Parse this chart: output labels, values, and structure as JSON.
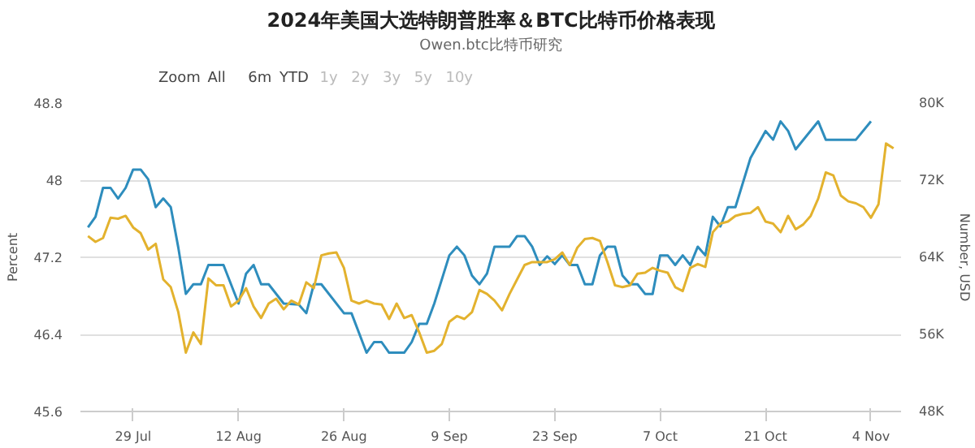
{
  "chart_data": {
    "type": "line",
    "title": "2024年美国大选特朗普胜率＆BTC比特币价格表现",
    "subtitle": "Owen.btc比特币研究",
    "annotations": [
      "Zoom",
      "All",
      "6m",
      "YTD",
      "1y",
      "2y",
      "3y",
      "5y",
      "10y"
    ],
    "ylabel": "Percent",
    "y2label": "Number, USD",
    "grid": "y",
    "marker": "none",
    "line_style": "solid",
    "xlim": [
      "2024-07-22",
      "2024-11-08"
    ],
    "xticks": [
      {
        "value": "2024-07-29",
        "label": "29 Jul"
      },
      {
        "value": "2024-08-12",
        "label": "12 Aug"
      },
      {
        "value": "2024-08-26",
        "label": "26 Aug"
      },
      {
        "value": "2024-09-09",
        "label": "9 Sep"
      },
      {
        "value": "2024-09-23",
        "label": "23 Sep"
      },
      {
        "value": "2024-10-07",
        "label": "7 Oct"
      },
      {
        "value": "2024-10-21",
        "label": "21 Oct"
      },
      {
        "value": "2024-11-04",
        "label": "4 Nov"
      }
    ],
    "ylim": [
      45.6,
      48.8
    ],
    "yticks": [
      45.6,
      46.4,
      47.2,
      48,
      48.8
    ],
    "y2lim": [
      48000,
      80000
    ],
    "y2ticks": [
      {
        "value": 48000,
        "label": "48K"
      },
      {
        "value": 56000,
        "label": "56K"
      },
      {
        "value": 64000,
        "label": "64K"
      },
      {
        "value": 72000,
        "label": "72K"
      },
      {
        "value": 80000,
        "label": "80K"
      }
    ],
    "series": [
      {
        "color": "#2e8dbd",
        "x": [
          "2024-07-23",
          "2024-07-24",
          "2024-07-25",
          "2024-07-26",
          "2024-07-27",
          "2024-07-28",
          "2024-07-29",
          "2024-07-30",
          "2024-07-31",
          "2024-08-01",
          "2024-08-02",
          "2024-08-03",
          "2024-08-04",
          "2024-08-05",
          "2024-08-06",
          "2024-08-07",
          "2024-08-08",
          "2024-08-10",
          "2024-08-12",
          "2024-08-13",
          "2024-08-14",
          "2024-08-15",
          "2024-08-16",
          "2024-08-18",
          "2024-08-20",
          "2024-08-21",
          "2024-08-22",
          "2024-08-23",
          "2024-08-26",
          "2024-08-27",
          "2024-08-29",
          "2024-08-30",
          "2024-08-31",
          "2024-09-01",
          "2024-09-03",
          "2024-09-04",
          "2024-09-05",
          "2024-09-06",
          "2024-09-07",
          "2024-09-09",
          "2024-09-10",
          "2024-09-11",
          "2024-09-12",
          "2024-09-13",
          "2024-09-14",
          "2024-09-15",
          "2024-09-17",
          "2024-09-18",
          "2024-09-19",
          "2024-09-20",
          "2024-09-21",
          "2024-09-22",
          "2024-09-23",
          "2024-09-24",
          "2024-09-25",
          "2024-09-26",
          "2024-09-27",
          "2024-09-28",
          "2024-09-29",
          "2024-09-30",
          "2024-10-01",
          "2024-10-02",
          "2024-10-03",
          "2024-10-04",
          "2024-10-05",
          "2024-10-06",
          "2024-10-07",
          "2024-10-08",
          "2024-10-09",
          "2024-10-10",
          "2024-10-11",
          "2024-10-12",
          "2024-10-13",
          "2024-10-14",
          "2024-10-15",
          "2024-10-16",
          "2024-10-17",
          "2024-10-19",
          "2024-10-21",
          "2024-10-22",
          "2024-10-23",
          "2024-10-24",
          "2024-10-25",
          "2024-10-28",
          "2024-10-29",
          "2024-11-02",
          "2024-11-04"
        ],
        "values": [
          47.51,
          47.62,
          47.92,
          47.92,
          47.81,
          47.92,
          48.11,
          48.11,
          48.01,
          47.72,
          47.81,
          47.72,
          47.3,
          46.82,
          46.92,
          46.92,
          47.12,
          47.12,
          46.72,
          47.03,
          47.12,
          46.92,
          46.92,
          46.72,
          46.71,
          46.62,
          46.92,
          46.92,
          46.62,
          46.62,
          46.21,
          46.32,
          46.32,
          46.21,
          46.21,
          46.32,
          46.51,
          46.51,
          46.72,
          47.22,
          47.31,
          47.22,
          47.01,
          46.92,
          47.03,
          47.31,
          47.31,
          47.42,
          47.42,
          47.31,
          47.12,
          47.21,
          47.13,
          47.22,
          47.12,
          47.12,
          46.92,
          46.92,
          47.22,
          47.31,
          47.31,
          47.01,
          46.92,
          46.92,
          46.82,
          46.82,
          47.22,
          47.22,
          47.12,
          47.22,
          47.12,
          47.31,
          47.22,
          47.62,
          47.52,
          47.72,
          47.72,
          48.23,
          48.51,
          48.42,
          48.61,
          48.51,
          48.32,
          48.61,
          48.42,
          48.42,
          48.61
        ]
      },
      {
        "color": "#e3b22e",
        "axis": "y2",
        "x": [
          "2024-07-23",
          "2024-07-24",
          "2024-07-25",
          "2024-07-26",
          "2024-07-27",
          "2024-07-28",
          "2024-07-29",
          "2024-07-30",
          "2024-07-31",
          "2024-08-01",
          "2024-08-02",
          "2024-08-03",
          "2024-08-04",
          "2024-08-05",
          "2024-08-06",
          "2024-08-07",
          "2024-08-08",
          "2024-08-09",
          "2024-08-10",
          "2024-08-11",
          "2024-08-12",
          "2024-08-13",
          "2024-08-14",
          "2024-08-15",
          "2024-08-16",
          "2024-08-17",
          "2024-08-18",
          "2024-08-19",
          "2024-08-20",
          "2024-08-21",
          "2024-08-22",
          "2024-08-23",
          "2024-08-24",
          "2024-08-25",
          "2024-08-26",
          "2024-08-27",
          "2024-08-28",
          "2024-08-29",
          "2024-08-30",
          "2024-08-31",
          "2024-09-01",
          "2024-09-02",
          "2024-09-03",
          "2024-09-04",
          "2024-09-05",
          "2024-09-06",
          "2024-09-07",
          "2024-09-08",
          "2024-09-09",
          "2024-09-10",
          "2024-09-11",
          "2024-09-12",
          "2024-09-13",
          "2024-09-14",
          "2024-09-15",
          "2024-09-16",
          "2024-09-17",
          "2024-09-18",
          "2024-09-19",
          "2024-09-20",
          "2024-09-21",
          "2024-09-22",
          "2024-09-23",
          "2024-09-24",
          "2024-09-25",
          "2024-09-26",
          "2024-09-27",
          "2024-09-28",
          "2024-09-29",
          "2024-09-30",
          "2024-10-01",
          "2024-10-02",
          "2024-10-03",
          "2024-10-04",
          "2024-10-05",
          "2024-10-06",
          "2024-10-07",
          "2024-10-08",
          "2024-10-09",
          "2024-10-10",
          "2024-10-11",
          "2024-10-12",
          "2024-10-13",
          "2024-10-14",
          "2024-10-15",
          "2024-10-16",
          "2024-10-17",
          "2024-10-18",
          "2024-10-19",
          "2024-10-20",
          "2024-10-21",
          "2024-10-22",
          "2024-10-23",
          "2024-10-24",
          "2024-10-25",
          "2024-10-26",
          "2024-10-27",
          "2024-10-28",
          "2024-10-29",
          "2024-10-30",
          "2024-10-31",
          "2024-11-01",
          "2024-11-02",
          "2024-11-03",
          "2024-11-04",
          "2024-11-05",
          "2024-11-06",
          "2024-11-07"
        ],
        "values": [
          66200,
          65600,
          66000,
          68100,
          68000,
          68300,
          67100,
          66500,
          64800,
          65400,
          61700,
          60900,
          58300,
          54100,
          56200,
          55000,
          61800,
          61100,
          61100,
          58900,
          59500,
          60800,
          58900,
          57700,
          59200,
          59700,
          58600,
          59500,
          59100,
          61400,
          60800,
          64200,
          64400,
          64500,
          62900,
          59500,
          59200,
          59500,
          59200,
          59100,
          57600,
          59200,
          57700,
          58000,
          56200,
          54100,
          54300,
          55000,
          57300,
          57900,
          57600,
          58300,
          60600,
          60200,
          59500,
          58500,
          60200,
          61700,
          63200,
          63500,
          63500,
          63500,
          63800,
          64500,
          63200,
          65000,
          65900,
          66000,
          65700,
          63500,
          61100,
          60900,
          61100,
          62300,
          62400,
          62900,
          62600,
          62400,
          60900,
          60500,
          62900,
          63300,
          63000,
          66600,
          67500,
          67700,
          68300,
          68500,
          68600,
          69200,
          67700,
          67500,
          66600,
          68300,
          66900,
          67400,
          68300,
          70100,
          72800,
          72500,
          70400,
          69800,
          69600,
          69200,
          68100,
          69500,
          75800,
          75300
        ]
      }
    ]
  }
}
